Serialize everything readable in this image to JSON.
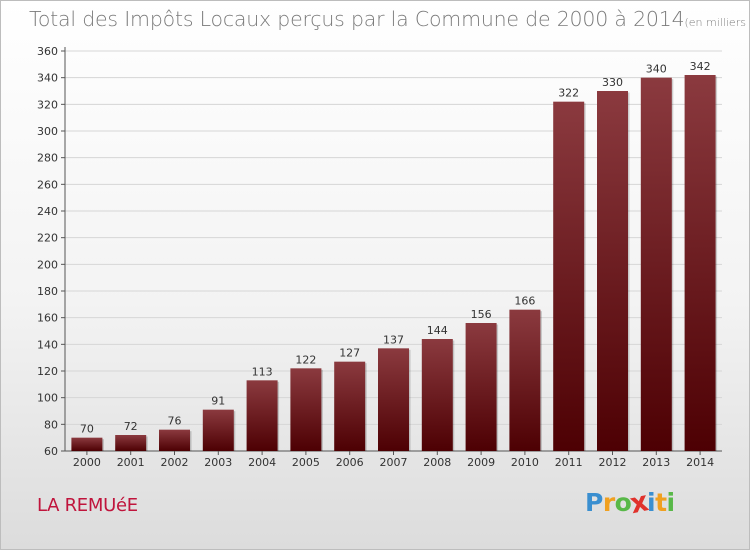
{
  "header": {
    "title": "Total des Impôts Locaux perçus par la Commune de 2000 à 2014",
    "unit": "(en milliers d'€)"
  },
  "footer": {
    "commune": "LA REMUéE",
    "logo_letters": [
      {
        "char": "P",
        "color": "#3a8fd0"
      },
      {
        "char": "r",
        "color": "#f0a020"
      },
      {
        "char": "o",
        "color": "#58b848"
      },
      {
        "char": "x",
        "color": "#e0322c"
      },
      {
        "char": "i",
        "color": "#3a8fd0"
      },
      {
        "char": "t",
        "color": "#f0a020"
      },
      {
        "char": "i",
        "color": "#58b848"
      }
    ]
  },
  "colors": {
    "bar_top": "#8b3a3f",
    "bar_bottom": "#4d0003",
    "grid": "#d6d6d6",
    "commune": "#c0143c"
  },
  "chart_data": {
    "type": "bar",
    "title": "Total des Impôts Locaux perçus par la Commune de 2000 à 2014",
    "xlabel": "",
    "ylabel": "",
    "categories": [
      "2000",
      "2001",
      "2002",
      "2003",
      "2004",
      "2005",
      "2006",
      "2007",
      "2008",
      "2009",
      "2010",
      "2011",
      "2012",
      "2013",
      "2014"
    ],
    "values": [
      70,
      72,
      76,
      91,
      113,
      122,
      127,
      137,
      144,
      156,
      166,
      322,
      330,
      340,
      342
    ],
    "ylim": [
      60,
      360
    ],
    "yticks": [
      60,
      80,
      100,
      120,
      140,
      160,
      180,
      200,
      220,
      240,
      260,
      280,
      300,
      320,
      340,
      360
    ],
    "grid": true
  }
}
